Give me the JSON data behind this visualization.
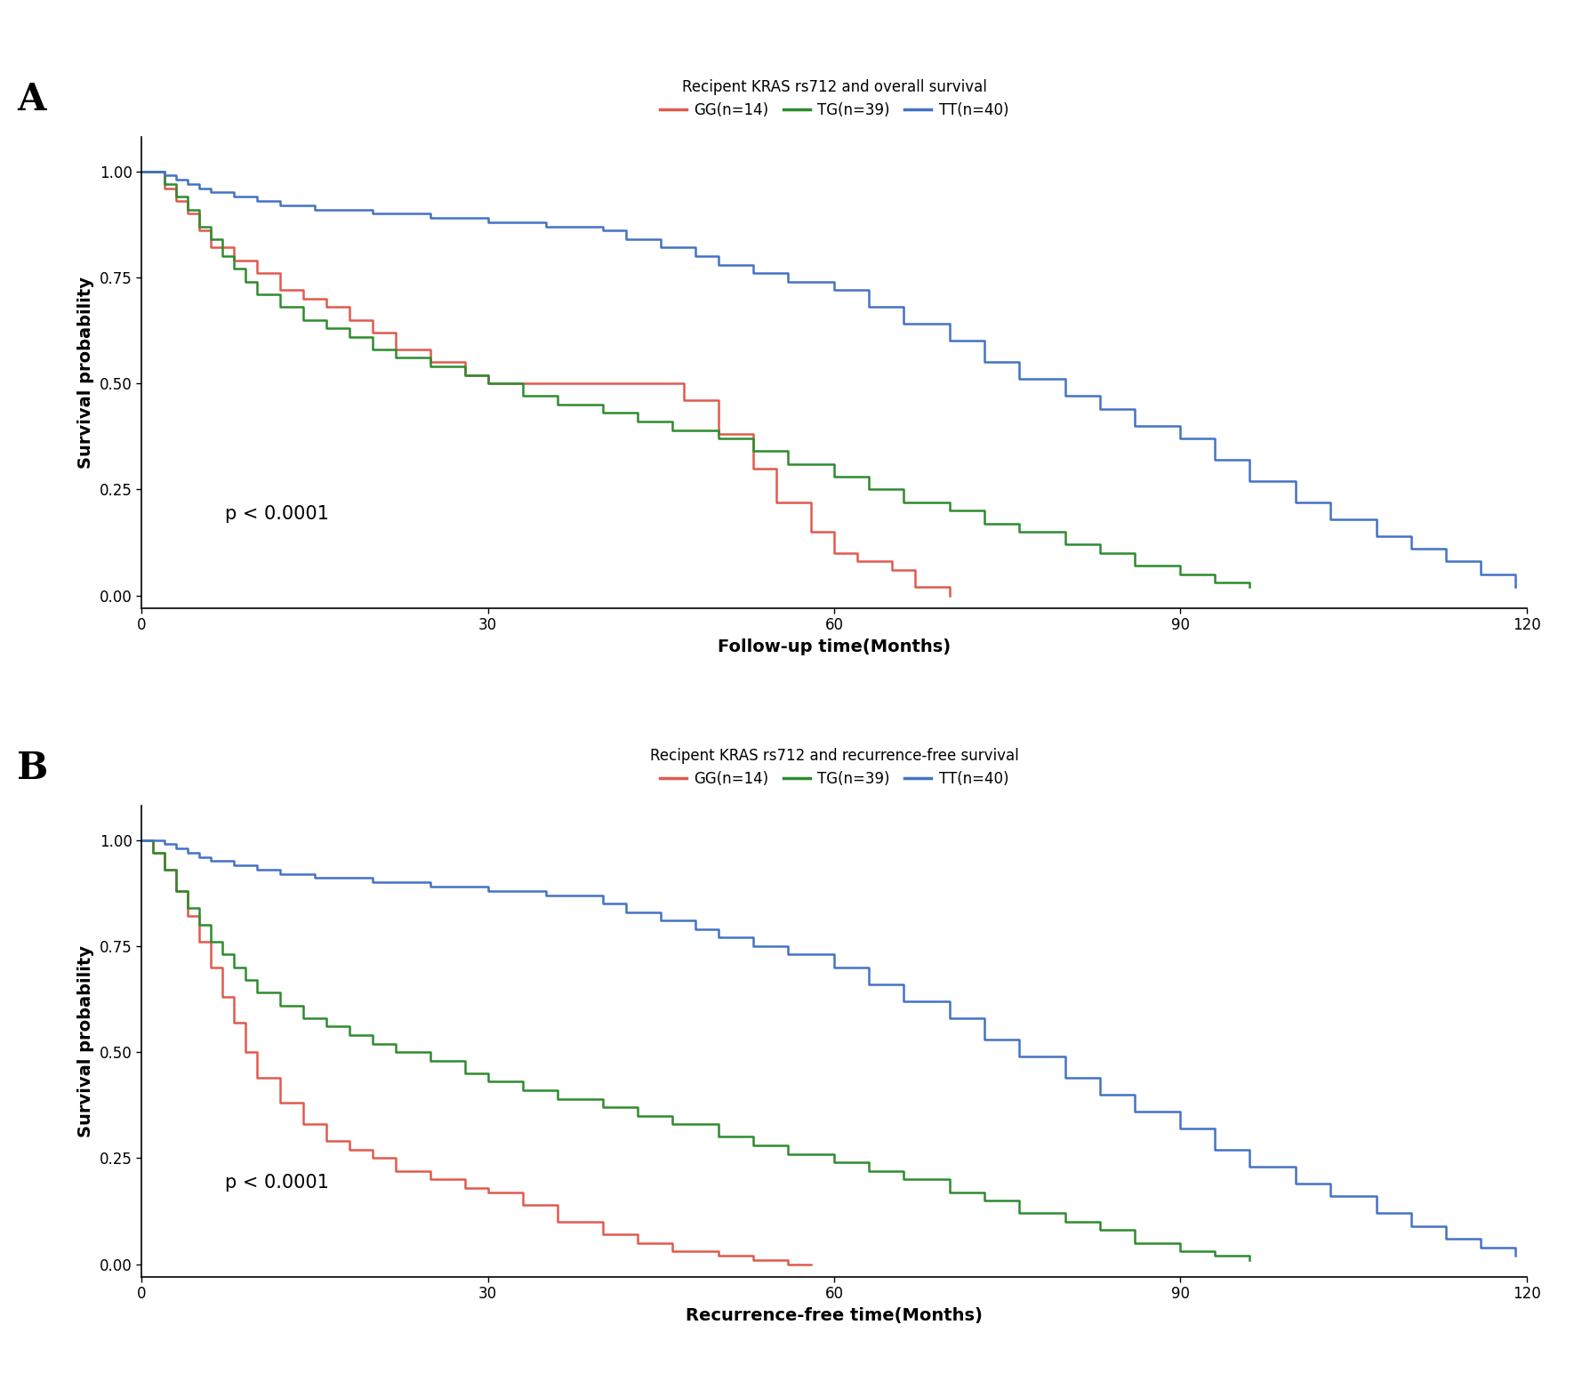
{
  "panel_A": {
    "title": "Recipent KRAS rs712 and overall survival",
    "xlabel": "Follow-up time(Months)",
    "ylabel": "Survival probability",
    "p_value": "p < 0.0001",
    "xlim": [
      0,
      120
    ],
    "ylim": [
      -0.03,
      1.08
    ],
    "xticks": [
      0,
      30,
      60,
      90,
      120
    ],
    "yticks": [
      0.0,
      0.25,
      0.5,
      0.75,
      1.0
    ],
    "GG": {
      "label": "GG(n=14)",
      "color": "#E05A4E",
      "times": [
        0,
        1,
        2,
        3,
        4,
        5,
        6,
        8,
        10,
        12,
        14,
        16,
        18,
        20,
        22,
        25,
        28,
        30,
        32,
        45,
        47,
        50,
        53,
        55,
        58,
        60,
        62,
        65,
        67,
        70
      ],
      "surv": [
        1.0,
        1.0,
        0.96,
        0.93,
        0.9,
        0.86,
        0.82,
        0.79,
        0.76,
        0.72,
        0.7,
        0.68,
        0.65,
        0.62,
        0.58,
        0.55,
        0.52,
        0.5,
        0.5,
        0.5,
        0.46,
        0.38,
        0.3,
        0.22,
        0.15,
        0.1,
        0.08,
        0.06,
        0.02,
        0.0
      ]
    },
    "TG": {
      "label": "TG(n=39)",
      "color": "#2E8B2E",
      "times": [
        0,
        1,
        2,
        3,
        4,
        5,
        6,
        7,
        8,
        9,
        10,
        12,
        14,
        16,
        18,
        20,
        22,
        25,
        28,
        30,
        33,
        36,
        40,
        43,
        46,
        50,
        53,
        56,
        60,
        63,
        66,
        70,
        73,
        76,
        80,
        83,
        86,
        90,
        93,
        96
      ],
      "surv": [
        1.0,
        1.0,
        0.97,
        0.94,
        0.91,
        0.87,
        0.84,
        0.8,
        0.77,
        0.74,
        0.71,
        0.68,
        0.65,
        0.63,
        0.61,
        0.58,
        0.56,
        0.54,
        0.52,
        0.5,
        0.47,
        0.45,
        0.43,
        0.41,
        0.39,
        0.37,
        0.34,
        0.31,
        0.28,
        0.25,
        0.22,
        0.2,
        0.17,
        0.15,
        0.12,
        0.1,
        0.07,
        0.05,
        0.03,
        0.02
      ]
    },
    "TT": {
      "label": "TT(n=40)",
      "color": "#4472C4",
      "times": [
        0,
        1,
        2,
        3,
        4,
        5,
        6,
        8,
        10,
        12,
        15,
        20,
        25,
        30,
        35,
        40,
        42,
        45,
        48,
        50,
        53,
        56,
        60,
        63,
        66,
        70,
        73,
        76,
        80,
        83,
        86,
        90,
        93,
        96,
        100,
        103,
        107,
        110,
        113,
        116,
        119
      ],
      "surv": [
        1.0,
        1.0,
        0.99,
        0.98,
        0.97,
        0.96,
        0.95,
        0.94,
        0.93,
        0.92,
        0.91,
        0.9,
        0.89,
        0.88,
        0.87,
        0.86,
        0.84,
        0.82,
        0.8,
        0.78,
        0.76,
        0.74,
        0.72,
        0.68,
        0.64,
        0.6,
        0.55,
        0.51,
        0.47,
        0.44,
        0.4,
        0.37,
        0.32,
        0.27,
        0.22,
        0.18,
        0.14,
        0.11,
        0.08,
        0.05,
        0.02
      ]
    }
  },
  "panel_B": {
    "title": "Recipent KRAS rs712 and recurrence-free survival",
    "xlabel": "Recurrence-free time(Months)",
    "ylabel": "Survival probability",
    "p_value": "p < 0.0001",
    "xlim": [
      0,
      120
    ],
    "ylim": [
      -0.03,
      1.08
    ],
    "xticks": [
      0,
      30,
      60,
      90,
      120
    ],
    "yticks": [
      0.0,
      0.25,
      0.5,
      0.75,
      1.0
    ],
    "GG": {
      "label": "GG(n=14)",
      "color": "#E05A4E",
      "times": [
        0,
        1,
        2,
        3,
        4,
        5,
        6,
        7,
        8,
        9,
        10,
        12,
        14,
        16,
        18,
        20,
        22,
        25,
        28,
        30,
        33,
        36,
        40,
        43,
        46,
        50,
        53,
        56,
        58
      ],
      "surv": [
        1.0,
        0.97,
        0.93,
        0.88,
        0.82,
        0.76,
        0.7,
        0.63,
        0.57,
        0.5,
        0.44,
        0.38,
        0.33,
        0.29,
        0.27,
        0.25,
        0.22,
        0.2,
        0.18,
        0.17,
        0.14,
        0.1,
        0.07,
        0.05,
        0.03,
        0.02,
        0.01,
        0.0,
        0.0
      ]
    },
    "TG": {
      "label": "TG(n=39)",
      "color": "#2E8B2E",
      "times": [
        0,
        1,
        2,
        3,
        4,
        5,
        6,
        7,
        8,
        9,
        10,
        12,
        14,
        16,
        18,
        20,
        22,
        25,
        28,
        30,
        33,
        36,
        40,
        43,
        46,
        50,
        53,
        56,
        60,
        63,
        66,
        70,
        73,
        76,
        80,
        83,
        86,
        90,
        93,
        96
      ],
      "surv": [
        1.0,
        0.97,
        0.93,
        0.88,
        0.84,
        0.8,
        0.76,
        0.73,
        0.7,
        0.67,
        0.64,
        0.61,
        0.58,
        0.56,
        0.54,
        0.52,
        0.5,
        0.48,
        0.45,
        0.43,
        0.41,
        0.39,
        0.37,
        0.35,
        0.33,
        0.3,
        0.28,
        0.26,
        0.24,
        0.22,
        0.2,
        0.17,
        0.15,
        0.12,
        0.1,
        0.08,
        0.05,
        0.03,
        0.02,
        0.01
      ]
    },
    "TT": {
      "label": "TT(n=40)",
      "color": "#4472C4",
      "times": [
        0,
        1,
        2,
        3,
        4,
        5,
        6,
        8,
        10,
        12,
        15,
        20,
        25,
        30,
        35,
        40,
        42,
        45,
        48,
        50,
        53,
        56,
        60,
        63,
        66,
        70,
        73,
        76,
        80,
        83,
        86,
        90,
        93,
        96,
        100,
        103,
        107,
        110,
        113,
        116,
        119
      ],
      "surv": [
        1.0,
        1.0,
        0.99,
        0.98,
        0.97,
        0.96,
        0.95,
        0.94,
        0.93,
        0.92,
        0.91,
        0.9,
        0.89,
        0.88,
        0.87,
        0.85,
        0.83,
        0.81,
        0.79,
        0.77,
        0.75,
        0.73,
        0.7,
        0.66,
        0.62,
        0.58,
        0.53,
        0.49,
        0.44,
        0.4,
        0.36,
        0.32,
        0.27,
        0.23,
        0.19,
        0.16,
        0.12,
        0.09,
        0.06,
        0.04,
        0.02
      ]
    }
  },
  "legend_title_fontsize": 12,
  "legend_label_fontsize": 12,
  "axis_label_fontsize": 14,
  "tick_label_fontsize": 12,
  "panel_label_fontsize": 30,
  "pvalue_fontsize": 15,
  "line_width": 1.8,
  "background_color": "#ffffff"
}
